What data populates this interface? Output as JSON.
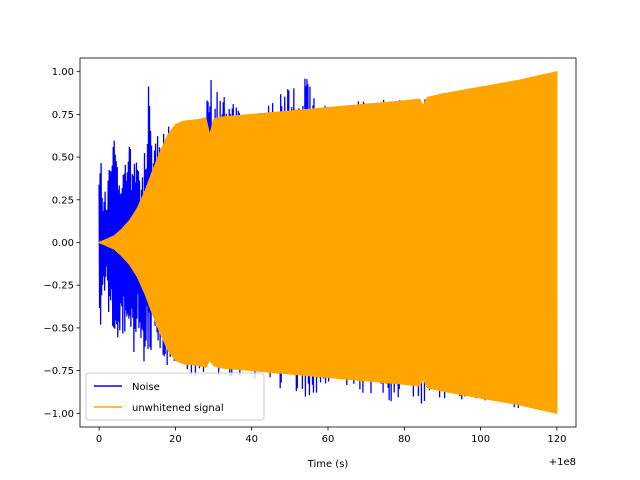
{
  "chart_data": {
    "type": "line",
    "xlabel": "Time (s)",
    "x_offset_label": "+1e8",
    "xlim": [
      -5,
      125
    ],
    "ylim": [
      -1.08,
      1.08
    ],
    "x_ticks": [
      0,
      20,
      40,
      60,
      80,
      100,
      120
    ],
    "x_tick_labels": [
      "0",
      "20",
      "40",
      "60",
      "80",
      "100",
      "120"
    ],
    "y_ticks": [
      -1.0,
      -0.75,
      -0.5,
      -0.25,
      0.0,
      0.25,
      0.5,
      0.75,
      1.0
    ],
    "y_tick_labels": [
      "−1.00",
      "−0.75",
      "−0.50",
      "−0.25",
      "0.00",
      "0.25",
      "0.50",
      "0.75",
      "1.00"
    ],
    "legend_position": "lower-left",
    "series": [
      {
        "name": "Noise",
        "color": "#0000ff",
        "x": [
          0,
          0.5,
          1,
          1.5,
          2,
          2.5,
          3,
          4,
          5,
          6,
          7,
          8,
          9,
          10,
          11,
          12,
          13,
          14,
          15,
          16,
          17,
          18,
          20,
          25,
          29.5,
          30,
          40,
          50,
          54.5,
          60,
          63,
          80,
          100,
          110,
          119
        ],
        "upper": [
          0.4,
          0.54,
          0.3,
          0.35,
          0.2,
          0.45,
          0.6,
          0.75,
          0.4,
          0.45,
          0.55,
          0.62,
          0.4,
          0.65,
          0.3,
          0.55,
          0.98,
          0.52,
          0.66,
          0.55,
          0.65,
          0.68,
          0.72,
          0.72,
          0.96,
          0.9,
          0.75,
          0.92,
          1.0,
          0.8,
          0.83,
          0.84,
          0.9,
          0.95,
          1.0
        ],
        "lower": [
          -0.3,
          -0.62,
          -0.2,
          -0.4,
          -0.15,
          -0.5,
          -0.45,
          -0.6,
          -0.55,
          -0.5,
          -0.65,
          -0.55,
          -0.7,
          -0.5,
          -0.68,
          -0.72,
          -0.62,
          -0.72,
          -0.55,
          -0.72,
          -0.72,
          -0.72,
          -0.72,
          -0.8,
          -0.78,
          -0.78,
          -0.84,
          -0.86,
          -0.98,
          -0.85,
          -0.86,
          -0.95,
          -0.92,
          -0.97,
          -1.0
        ]
      },
      {
        "name": "unwhitened signal",
        "color": "#ffa500",
        "x": [
          0,
          2,
          4,
          6,
          8,
          10,
          12,
          14,
          16,
          18,
          20,
          22,
          24,
          26,
          28,
          29,
          30,
          31,
          32,
          40,
          50,
          60,
          70,
          80,
          84,
          85,
          86,
          90,
          100,
          110,
          120
        ],
        "upper": [
          0.0,
          0.02,
          0.04,
          0.08,
          0.13,
          0.2,
          0.3,
          0.42,
          0.53,
          0.63,
          0.69,
          0.71,
          0.715,
          0.72,
          0.73,
          0.63,
          0.72,
          0.73,
          0.735,
          0.75,
          0.77,
          0.79,
          0.81,
          0.83,
          0.84,
          0.8,
          0.85,
          0.87,
          0.91,
          0.95,
          1.0
        ],
        "lower": [
          0.0,
          -0.02,
          -0.04,
          -0.08,
          -0.13,
          -0.2,
          -0.3,
          -0.42,
          -0.53,
          -0.63,
          -0.69,
          -0.71,
          -0.715,
          -0.72,
          -0.73,
          -0.69,
          -0.72,
          -0.73,
          -0.735,
          -0.75,
          -0.77,
          -0.79,
          -0.81,
          -0.83,
          -0.84,
          -0.8,
          -0.85,
          -0.87,
          -0.91,
          -0.95,
          -1.0
        ]
      }
    ]
  }
}
